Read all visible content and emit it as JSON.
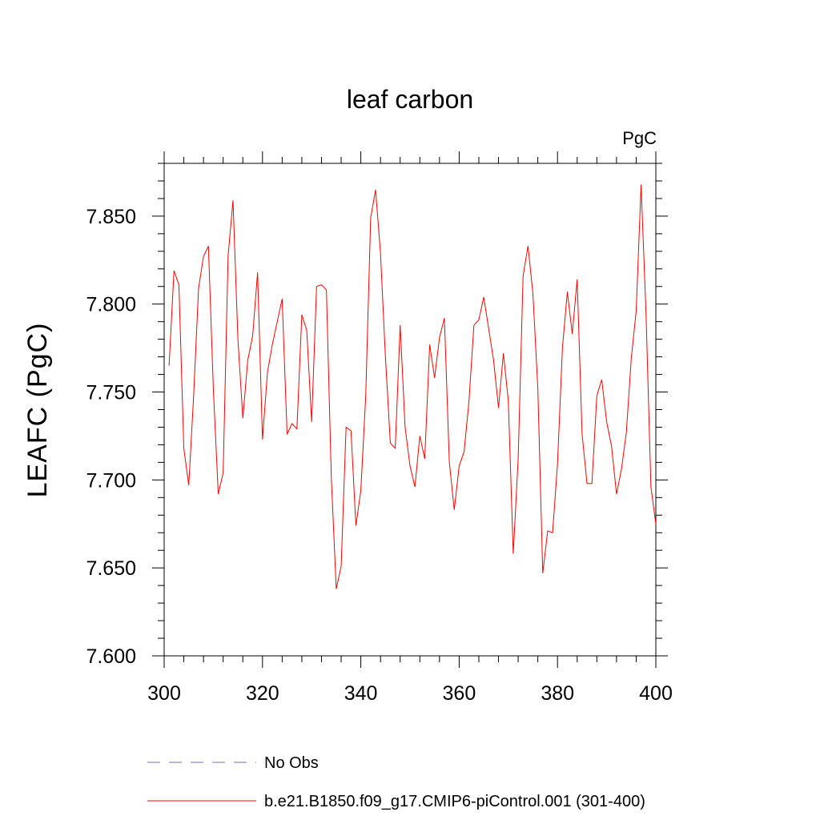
{
  "chart_data": {
    "type": "line",
    "title": "leaf carbon",
    "units_label": "PgC",
    "ylabel": "LEAFC  (PgC)",
    "xlabel": "",
    "xlim": [
      300,
      400
    ],
    "ylim": [
      7.6,
      7.88
    ],
    "x_ticks": [
      300,
      320,
      340,
      360,
      380,
      400
    ],
    "x_tick_labels": [
      "300",
      "320",
      "340",
      "360",
      "380",
      "400"
    ],
    "y_ticks": [
      7.6,
      7.65,
      7.7,
      7.75,
      7.8,
      7.85
    ],
    "y_tick_labels": [
      "7.600",
      "7.650",
      "7.700",
      "7.750",
      "7.800",
      "7.850"
    ],
    "grid": false,
    "legend_position": "bottom-left",
    "colors": {
      "model": "#ff0000",
      "obs": "#7b68c8",
      "axis": "#000000"
    },
    "series": [
      {
        "name": "b.e21.B1850.f09_g17.CMIP6-piControl.001 (301-400)",
        "style": "solid",
        "x": [
          301,
          302,
          303,
          304,
          305,
          306,
          307,
          308,
          309,
          310,
          311,
          312,
          313,
          314,
          315,
          316,
          317,
          318,
          319,
          320,
          321,
          322,
          323,
          324,
          325,
          326,
          327,
          328,
          329,
          330,
          331,
          332,
          333,
          334,
          335,
          336,
          337,
          338,
          339,
          340,
          341,
          342,
          343,
          344,
          345,
          346,
          347,
          348,
          349,
          350,
          351,
          352,
          353,
          354,
          355,
          356,
          357,
          358,
          359,
          360,
          361,
          362,
          363,
          364,
          365,
          366,
          367,
          368,
          369,
          370,
          371,
          372,
          373,
          374,
          375,
          376,
          377,
          378,
          379,
          380,
          381,
          382,
          383,
          384,
          385,
          386,
          387,
          388,
          389,
          390,
          391,
          392,
          393,
          394,
          395,
          396,
          397,
          398,
          399,
          400
        ],
        "values": [
          7.765,
          7.819,
          7.811,
          7.718,
          7.697,
          7.748,
          7.809,
          7.827,
          7.833,
          7.752,
          7.692,
          7.704,
          7.827,
          7.859,
          7.78,
          7.735,
          7.768,
          7.782,
          7.818,
          7.723,
          7.761,
          7.777,
          7.79,
          7.803,
          7.726,
          7.732,
          7.729,
          7.794,
          7.785,
          7.733,
          7.81,
          7.811,
          7.808,
          7.701,
          7.638,
          7.651,
          7.73,
          7.728,
          7.674,
          7.694,
          7.748,
          7.849,
          7.865,
          7.829,
          7.77,
          7.721,
          7.718,
          7.788,
          7.73,
          7.708,
          7.696,
          7.725,
          7.712,
          7.777,
          7.758,
          7.781,
          7.792,
          7.71,
          7.683,
          7.708,
          7.716,
          7.745,
          7.788,
          7.791,
          7.804,
          7.786,
          7.768,
          7.741,
          7.772,
          7.745,
          7.658,
          7.712,
          7.816,
          7.833,
          7.806,
          7.752,
          7.647,
          7.671,
          7.67,
          7.709,
          7.775,
          7.807,
          7.783,
          7.814,
          7.726,
          7.698,
          7.698,
          7.748,
          7.757,
          7.733,
          7.719,
          7.692,
          7.706,
          7.727,
          7.769,
          7.796,
          7.868,
          7.795,
          7.696,
          7.675
        ]
      },
      {
        "name": "No Obs",
        "style": "dashed",
        "x": [],
        "values": []
      }
    ]
  }
}
